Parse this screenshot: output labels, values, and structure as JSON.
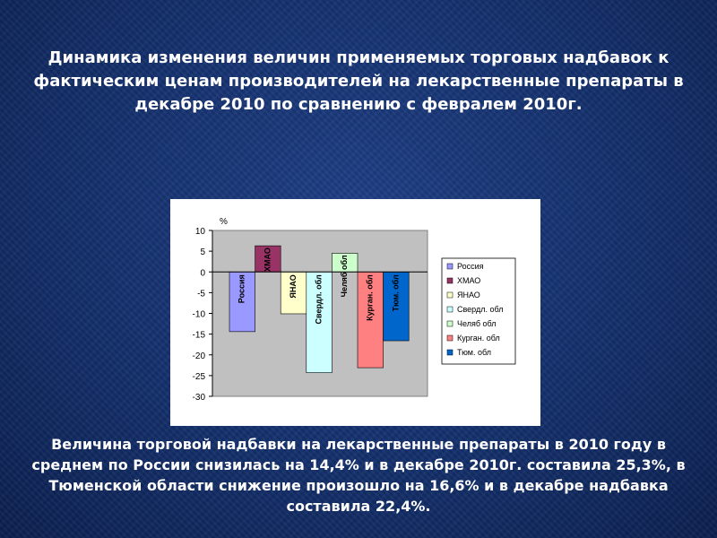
{
  "slide": {
    "title": "Динамика изменения величин применяемых торговых надбавок к фактическим ценам производителей на лекарственные препараты в декабре 2010 по сравнению с февралем 2010г.",
    "body": "Величина торговой надбавки на лекарственные препараты в 2010 году в среднем по России снизилась на 14,4% и в декабре 2010г. составила 25,3%, в  Тюменской области снижение произошло  на 16,6% и в декабре надбавка составила 22,4%."
  },
  "chart_data": {
    "type": "bar",
    "ylabel": "%",
    "ylim": [
      -30,
      10
    ],
    "yticks": [
      10,
      5,
      0,
      -5,
      -10,
      -15,
      -20,
      -25,
      -30
    ],
    "grid": false,
    "legend": "right",
    "plot_background": "#c0c0c0",
    "series": [
      {
        "name": "Россия",
        "value": -14.4,
        "color": "#9999ff"
      },
      {
        "name": "ХМАО",
        "value": 6.3,
        "color": "#993366"
      },
      {
        "name": "ЯНАО",
        "value": -10.1,
        "color": "#ffffcc"
      },
      {
        "name": "Свердл. обл",
        "value": -24.3,
        "color": "#ccffff"
      },
      {
        "name": "Челяб обл",
        "value": 4.5,
        "color": "#ccffcc"
      },
      {
        "name": "Курган. обл",
        "value": -23.1,
        "color": "#ff8080"
      },
      {
        "name": "Тюм. обл",
        "value": -16.6,
        "color": "#0066cc"
      }
    ]
  }
}
